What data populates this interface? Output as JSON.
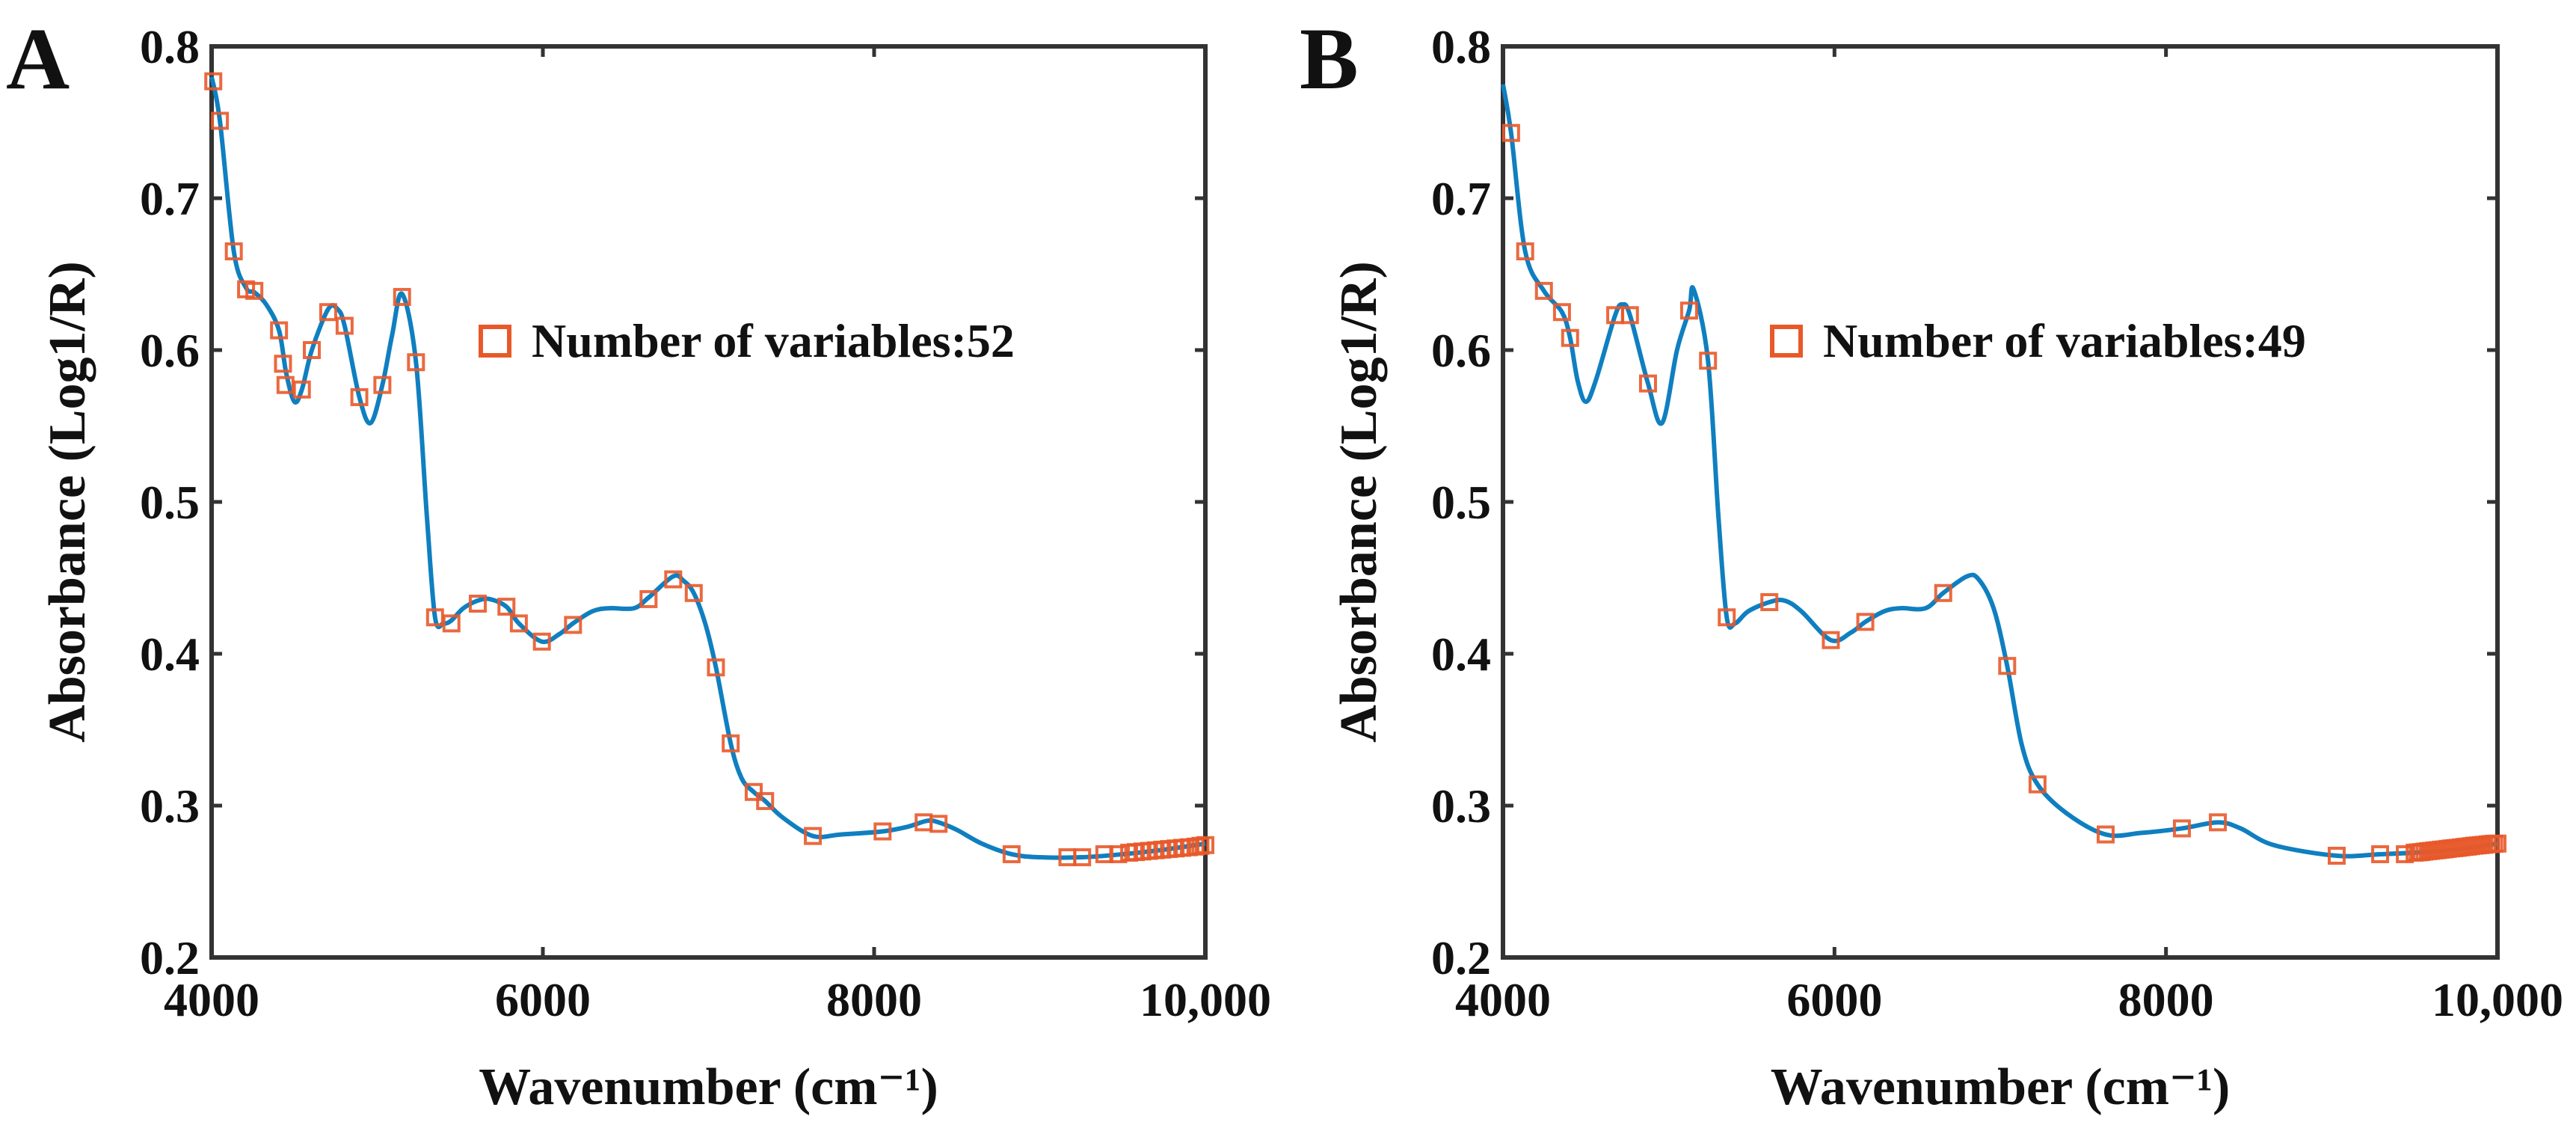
{
  "colors": {
    "line": "#0f7fc0",
    "marker": "#e8592a",
    "axis": "#333333"
  },
  "chart_data": [
    {
      "type": "line",
      "panel_label": "A",
      "xlabel": "Wavenumber (cm⁻¹)",
      "ylabel": "Absorbance (Log1/R)",
      "xlim": [
        4000,
        10000
      ],
      "ylim": [
        0.2,
        0.8
      ],
      "x_ticks": [
        4000,
        6000,
        8000,
        10000
      ],
      "x_tick_labels": [
        "4000",
        "6000",
        "8000",
        "10,000"
      ],
      "y_ticks": [
        0.2,
        0.3,
        0.4,
        0.5,
        0.6,
        0.7,
        0.8
      ],
      "y_tick_labels": [
        "0.2",
        "0.3",
        "0.4",
        "0.5",
        "0.6",
        "0.7",
        "0.8"
      ],
      "legend": {
        "label": "Number of variables:52",
        "placement": "upper-center"
      },
      "grid": false,
      "spectrum": {
        "x": [
          4000,
          4050,
          4134,
          4208,
          4258,
          4330,
          4407,
          4450,
          4500,
          4545,
          4605,
          4704,
          4760,
          4803,
          4892,
          4960,
          5031,
          5090,
          5150,
          5234,
          5300,
          5349,
          5400,
          5448,
          5520,
          5607,
          5680,
          5780,
          5855,
          5994,
          6100,
          6182,
          6300,
          6400,
          6550,
          6638,
          6787,
          6850,
          6911,
          6980,
          7045,
          7134,
          7200,
          7273,
          7342,
          7450,
          7630,
          7800,
          8051,
          8200,
          8320,
          8389,
          8500,
          8650,
          8830,
          9000,
          9256,
          9500,
          9750,
          10000
        ],
        "y": [
          0.78,
          0.751,
          0.665,
          0.641,
          0.638,
          0.63,
          0.613,
          0.585,
          0.566,
          0.574,
          0.6,
          0.627,
          0.627,
          0.616,
          0.569,
          0.552,
          0.577,
          0.61,
          0.637,
          0.592,
          0.49,
          0.424,
          0.42,
          0.422,
          0.43,
          0.435,
          0.436,
          0.431,
          0.42,
          0.408,
          0.413,
          0.42,
          0.428,
          0.43,
          0.43,
          0.437,
          0.451,
          0.448,
          0.44,
          0.42,
          0.391,
          0.341,
          0.318,
          0.309,
          0.303,
          0.292,
          0.28,
          0.281,
          0.283,
          0.286,
          0.29,
          0.289,
          0.284,
          0.275,
          0.268,
          0.266,
          0.266,
          0.268,
          0.271,
          0.275
        ]
      },
      "markers": {
        "x": [
          4010,
          4050,
          4134,
          4208,
          4258,
          4407,
          4431,
          4446,
          4545,
          4605,
          4704,
          4803,
          4892,
          5031,
          5150,
          5234,
          5349,
          5448,
          5607,
          5780,
          5855,
          5994,
          6182,
          6638,
          6787,
          6911,
          7045,
          7134,
          7273,
          7342,
          7630,
          8051,
          8299,
          8389,
          8830,
          9167,
          9256,
          9390,
          9474,
          9540,
          9580,
          9620,
          9660,
          9700,
          9740,
          9780,
          9820,
          9860,
          9900,
          9940,
          9970,
          10000
        ],
        "y": [
          0.777,
          0.751,
          0.665,
          0.64,
          0.639,
          0.613,
          0.591,
          0.577,
          0.574,
          0.6,
          0.625,
          0.616,
          0.569,
          0.577,
          0.635,
          0.592,
          0.424,
          0.42,
          0.433,
          0.431,
          0.42,
          0.408,
          0.419,
          0.436,
          0.449,
          0.44,
          0.391,
          0.341,
          0.309,
          0.303,
          0.28,
          0.283,
          0.289,
          0.288,
          0.268,
          0.266,
          0.266,
          0.268,
          0.268,
          0.269,
          0.2694,
          0.2698,
          0.2702,
          0.2706,
          0.271,
          0.2714,
          0.2718,
          0.2722,
          0.2726,
          0.273,
          0.2735,
          0.274
        ]
      }
    },
    {
      "type": "line",
      "panel_label": "B",
      "xlabel": "Wavenumber (cm⁻¹)",
      "ylabel": "Absorbance (Log1/R)",
      "xlim": [
        4000,
        10000
      ],
      "ylim": [
        0.2,
        0.8
      ],
      "x_ticks": [
        4000,
        6000,
        8000,
        10000
      ],
      "x_tick_labels": [
        "4000",
        "6000",
        "8000",
        "10,000"
      ],
      "y_ticks": [
        0.2,
        0.3,
        0.4,
        0.5,
        0.6,
        0.7,
        0.8
      ],
      "y_tick_labels": [
        "0.2",
        "0.3",
        "0.4",
        "0.5",
        "0.6",
        "0.7",
        "0.8"
      ],
      "legend": {
        "label": "Number of variables:49",
        "placement": "upper-center"
      },
      "grid": false,
      "spectrum": {
        "x": [
          4000,
          4049,
          4134,
          4247,
          4356,
          4405,
          4450,
          4500,
          4560,
          4677,
          4722,
          4766,
          4875,
          4960,
          5050,
          5123,
          5150,
          5237,
          5300,
          5350,
          5400,
          5480,
          5607,
          5700,
          5800,
          5978,
          6100,
          6186,
          6300,
          6400,
          6550,
          6656,
          6800,
          6870,
          6960,
          7042,
          7130,
          7225,
          7400,
          7636,
          7850,
          8096,
          8313,
          8450,
          8650,
          9030,
          9292,
          9500,
          9750,
          10000
        ],
        "y": [
          0.775,
          0.743,
          0.665,
          0.639,
          0.625,
          0.608,
          0.58,
          0.566,
          0.58,
          0.623,
          0.63,
          0.623,
          0.578,
          0.552,
          0.6,
          0.626,
          0.64,
          0.593,
          0.49,
          0.424,
          0.42,
          0.428,
          0.434,
          0.435,
          0.428,
          0.409,
          0.414,
          0.421,
          0.428,
          0.43,
          0.43,
          0.44,
          0.451,
          0.449,
          0.43,
          0.392,
          0.34,
          0.314,
          0.295,
          0.281,
          0.282,
          0.285,
          0.289,
          0.285,
          0.274,
          0.267,
          0.268,
          0.269,
          0.271,
          0.275
        ]
      },
      "markers": {
        "x": [
          4049,
          4134,
          4247,
          4356,
          4405,
          4677,
          4766,
          4875,
          5123,
          5237,
          5350,
          5607,
          5978,
          6186,
          6656,
          7042,
          7225,
          7636,
          8096,
          8313,
          9030,
          9292,
          9441,
          9500,
          9520,
          9540,
          9560,
          9580,
          9600,
          9620,
          9640,
          9660,
          9680,
          9700,
          9720,
          9740,
          9760,
          9780,
          9800,
          9820,
          9840,
          9860,
          9880,
          9900,
          9920,
          9940,
          9960,
          9980,
          10000
        ],
        "y": [
          0.743,
          0.665,
          0.639,
          0.625,
          0.608,
          0.623,
          0.623,
          0.578,
          0.626,
          0.593,
          0.424,
          0.434,
          0.409,
          0.421,
          0.44,
          0.392,
          0.314,
          0.281,
          0.285,
          0.289,
          0.267,
          0.268,
          0.268,
          0.269,
          0.2692,
          0.2694,
          0.2697,
          0.27,
          0.2702,
          0.2705,
          0.2707,
          0.271,
          0.2712,
          0.2715,
          0.2718,
          0.272,
          0.2722,
          0.2725,
          0.2728,
          0.273,
          0.2733,
          0.2736,
          0.2738,
          0.274,
          0.2742,
          0.2745,
          0.2747,
          0.2749,
          0.275
        ]
      }
    }
  ]
}
